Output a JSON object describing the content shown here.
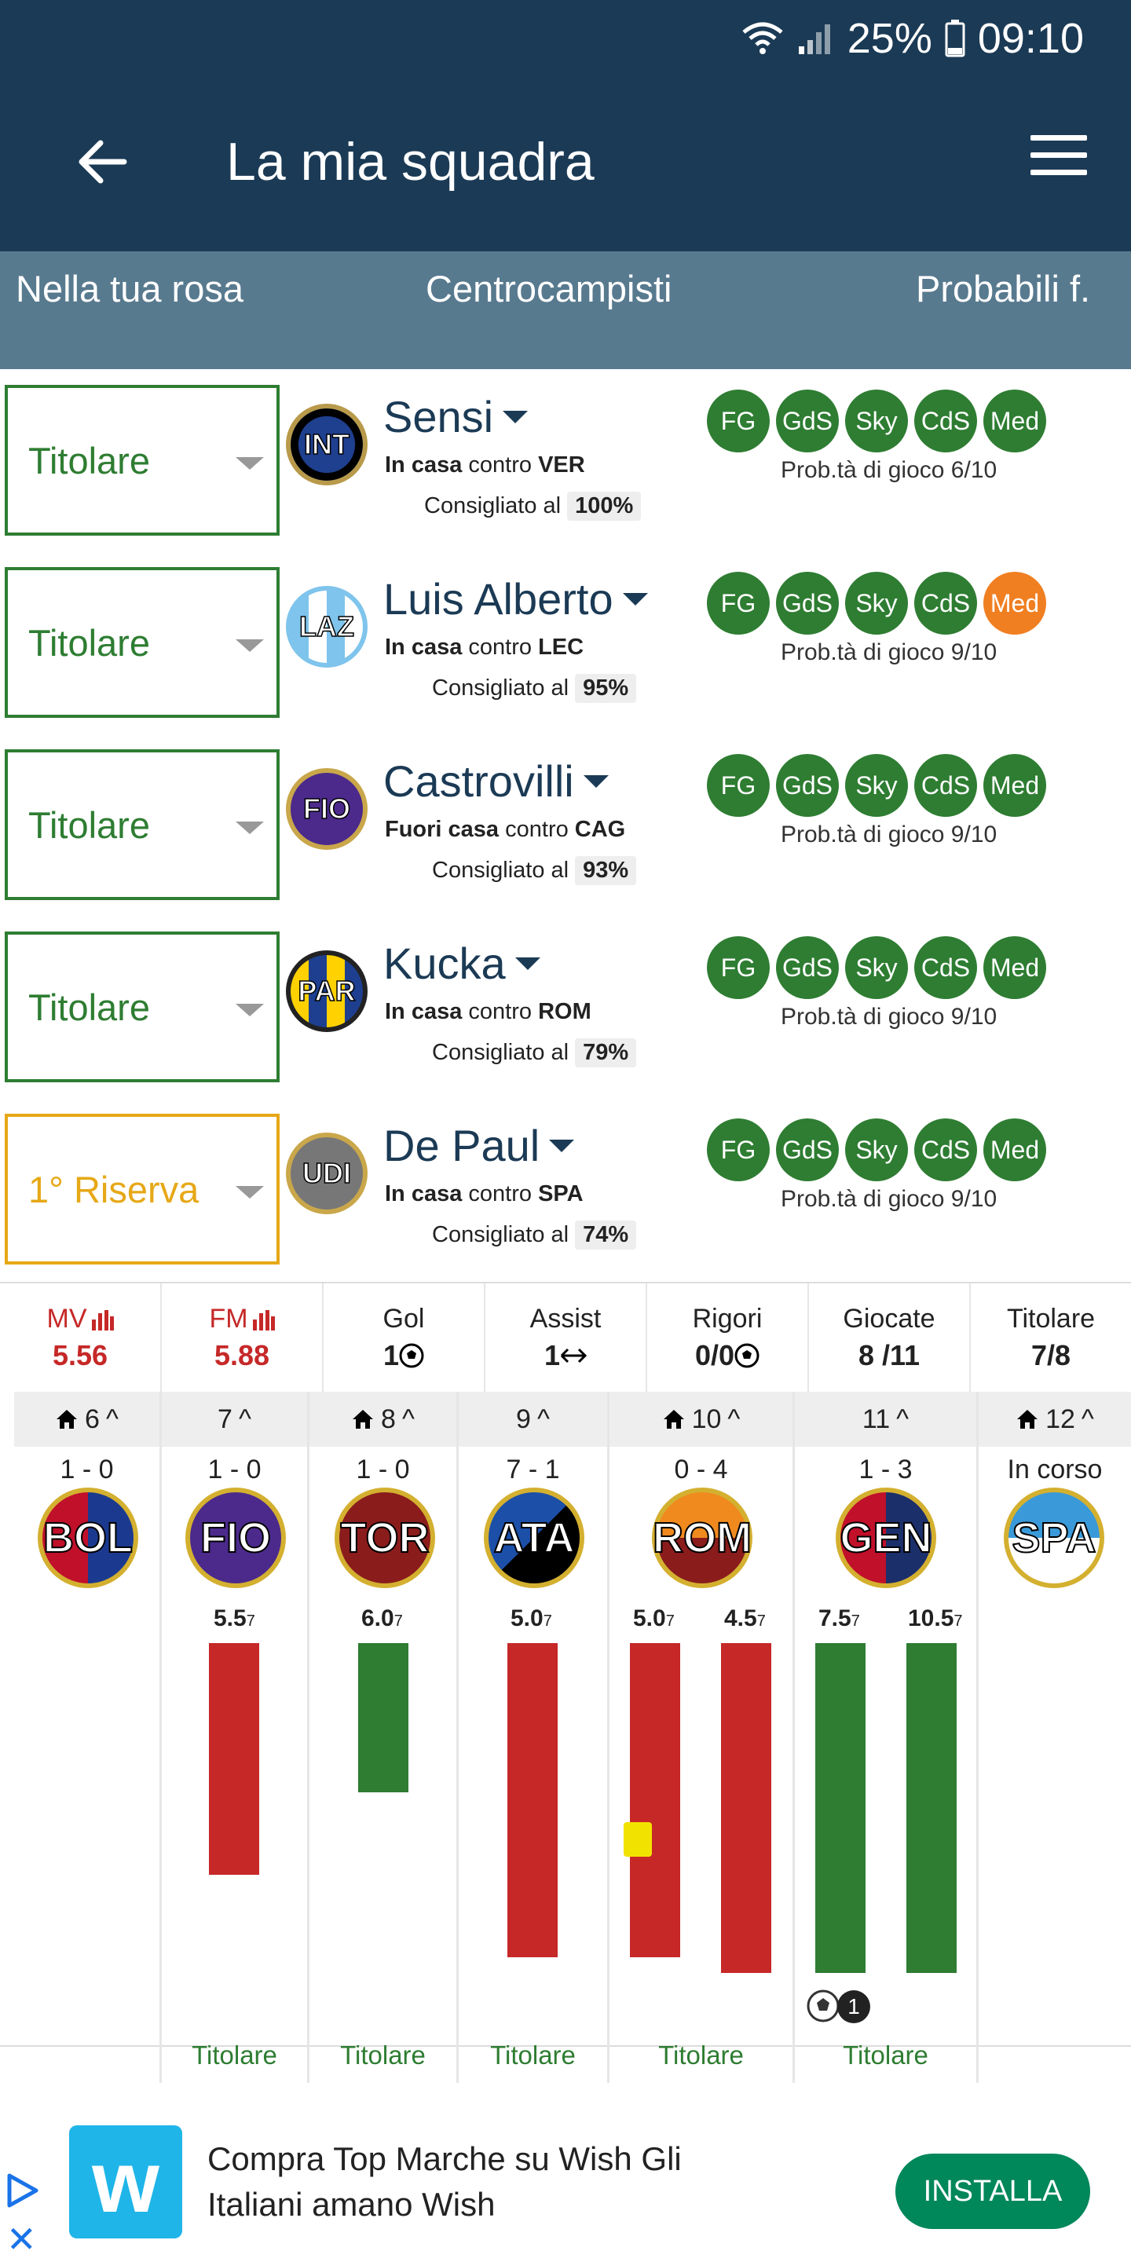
{
  "status": {
    "battery": "25%",
    "time": "09:10"
  },
  "appbar": {
    "title": "La mia squadra"
  },
  "filters": {
    "left": "Nella tua rosa",
    "center": "Centrocampisti",
    "right": "Probabili f."
  },
  "players": [
    {
      "role": "Titolare",
      "team": "INT",
      "name": "Sensi",
      "venue": "In casa",
      "vs": "contro",
      "opp": "VER",
      "reco_label": "Consigliato al",
      "reco": "100%",
      "sources": [
        "FG",
        "GdS",
        "Sky",
        "CdS",
        "Med"
      ],
      "prob": "Prob.tà di gioco 6/10"
    },
    {
      "role": "Titolare",
      "team": "LAZ",
      "name": "Luis Alberto",
      "venue": "In casa",
      "vs": "contro",
      "opp": "LEC",
      "reco_label": "Consigliato al",
      "reco": "95%",
      "sources": [
        "FG",
        "GdS",
        "Sky",
        "CdS",
        "Med"
      ],
      "prob": "Prob.tà di gioco 9/10"
    },
    {
      "role": "Titolare",
      "team": "FIO",
      "name": "Castrovilli",
      "venue": "Fuori casa",
      "vs": "contro",
      "opp": "CAG",
      "reco_label": "Consigliato al",
      "reco": "93%",
      "sources": [
        "FG",
        "GdS",
        "Sky",
        "CdS",
        "Med"
      ],
      "prob": "Prob.tà di gioco 9/10"
    },
    {
      "role": "Titolare",
      "team": "PAR",
      "name": "Kucka",
      "venue": "In casa",
      "vs": "contro",
      "opp": "ROM",
      "reco_label": "Consigliato al",
      "reco": "79%",
      "sources": [
        "FG",
        "GdS",
        "Sky",
        "CdS",
        "Med"
      ],
      "prob": "Prob.tà di gioco 9/10"
    },
    {
      "role": "1° Riserva",
      "team": "UDI",
      "name": "De Paul",
      "venue": "In casa",
      "vs": "contro",
      "opp": "SPA",
      "reco_label": "Consigliato al",
      "reco": "74%",
      "sources": [
        "FG",
        "GdS",
        "Sky",
        "CdS",
        "Med"
      ],
      "prob": "Prob.tà di gioco 9/10"
    }
  ],
  "stats": [
    {
      "label": "MV",
      "value": "5.56"
    },
    {
      "label": "FM",
      "value": "5.88"
    },
    {
      "label": "Gol",
      "value": "1"
    },
    {
      "label": "Assist",
      "value": "1"
    },
    {
      "label": "Rigori",
      "value": "0/0"
    },
    {
      "label": "Giocate",
      "value": "8 /11"
    },
    {
      "label": "Titolare",
      "value": "7/8"
    }
  ],
  "matches": [
    {
      "day": "6",
      "score": "1 - 0",
      "team": "BOL",
      "footer": ""
    },
    {
      "day": "7",
      "score": "1 - 0",
      "team": "FIO",
      "vote": "5.5",
      "footer": "Titolare"
    },
    {
      "day": "8",
      "score": "1 - 0",
      "team": "TOR",
      "vote": "6.0",
      "footer": "Titolare"
    },
    {
      "day": "9",
      "score": "7 - 1",
      "team": "ATA",
      "vote": "5.0",
      "footer": "Titolare"
    },
    {
      "day": "10",
      "score": "0 - 4",
      "team": "ROM",
      "vote": "5.0",
      "vote2": "4.5",
      "footer": "Titolare"
    },
    {
      "day": "11",
      "score": "1 - 3",
      "team": "GEN",
      "vote": "7.5",
      "vote2": "10.5",
      "badge": "1",
      "footer": "Titolare"
    },
    {
      "day": "12",
      "score": "In corso",
      "team": "SPA",
      "footer": ""
    }
  ],
  "vote_sub": "7",
  "ad": {
    "text": "Compra Top Marche su Wish Gli Italiani amano Wish",
    "button": "INSTALLA",
    "logo": "w"
  },
  "colors": {
    "primary": "#1b3a55",
    "filter": "#587a8f",
    "green": "#2e7d32",
    "red": "#c62828",
    "orange": "#f07f22",
    "reserve": "#e6a817"
  }
}
